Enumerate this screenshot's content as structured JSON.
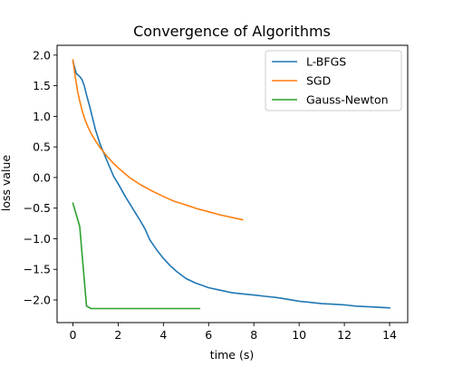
{
  "chart_data": {
    "type": "line",
    "title": "Convergence of Algorithms",
    "xlabel": "time (s)",
    "ylabel": "loss value",
    "xlim": [
      -0.7,
      14.8
    ],
    "ylim": [
      -2.37,
      2.16
    ],
    "xticks": [
      0,
      2,
      4,
      6,
      8,
      10,
      12,
      14
    ],
    "xtick_labels": [
      "0",
      "2",
      "4",
      "6",
      "8",
      "10",
      "12",
      "14"
    ],
    "yticks": [
      2.0,
      1.5,
      1.0,
      0.5,
      0.0,
      -0.5,
      -1.0,
      -1.5,
      -2.0
    ],
    "ytick_labels": [
      "2.0",
      "1.5",
      "1.0",
      "0.5",
      "0.0",
      "−0.5",
      "−1.0",
      "−1.5",
      "−2.0"
    ],
    "grid": false,
    "legend_position": "top-right",
    "series": [
      {
        "name": "L-BFGS",
        "color": "#1f77b4",
        "x": [
          0,
          0.15,
          0.3,
          0.4,
          0.5,
          0.6,
          0.75,
          0.85,
          1.0,
          1.2,
          1.5,
          1.8,
          2.0,
          2.3,
          2.6,
          2.8,
          3.0,
          3.2,
          3.4,
          3.7,
          4.0,
          4.3,
          4.6,
          5.0,
          5.4,
          6.0,
          6.5,
          7.0,
          7.5,
          8.0,
          8.5,
          9.0,
          9.5,
          10.0,
          10.5,
          11.0,
          11.5,
          12.0,
          12.5,
          13.0,
          13.5,
          14.0
        ],
        "y": [
          1.9,
          1.7,
          1.65,
          1.6,
          1.5,
          1.35,
          1.15,
          1.0,
          0.78,
          0.55,
          0.28,
          0.02,
          -0.1,
          -0.3,
          -0.48,
          -0.6,
          -0.72,
          -0.85,
          -1.02,
          -1.18,
          -1.32,
          -1.44,
          -1.54,
          -1.65,
          -1.72,
          -1.8,
          -1.84,
          -1.88,
          -1.9,
          -1.92,
          -1.94,
          -1.96,
          -1.99,
          -2.02,
          -2.04,
          -2.06,
          -2.07,
          -2.08,
          -2.1,
          -2.11,
          -2.12,
          -2.13
        ]
      },
      {
        "name": "SGD",
        "color": "#ff7f0e",
        "x": [
          0,
          0.1,
          0.2,
          0.3,
          0.4,
          0.5,
          0.6,
          0.8,
          1.0,
          1.2,
          1.5,
          1.8,
          2.0,
          2.5,
          3.0,
          3.5,
          4.0,
          4.5,
          5.0,
          5.5,
          6.0,
          6.5,
          7.0,
          7.5
        ],
        "y": [
          1.92,
          1.65,
          1.42,
          1.25,
          1.1,
          0.98,
          0.88,
          0.72,
          0.6,
          0.49,
          0.35,
          0.23,
          0.16,
          0.0,
          -0.12,
          -0.22,
          -0.31,
          -0.39,
          -0.45,
          -0.51,
          -0.56,
          -0.61,
          -0.65,
          -0.69
        ]
      },
      {
        "name": "Gauss-Newton",
        "color": "#2ca02c",
        "x": [
          0,
          0.3,
          0.6,
          0.8,
          1.0,
          2.0,
          3.0,
          4.0,
          5.0,
          5.6
        ],
        "y": [
          -0.42,
          -0.8,
          -2.1,
          -2.14,
          -2.14,
          -2.14,
          -2.14,
          -2.14,
          -2.14,
          -2.14
        ]
      }
    ]
  }
}
